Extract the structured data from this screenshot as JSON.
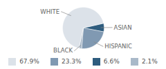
{
  "chart_data": {
    "type": "pie",
    "categories": [
      "WHITE",
      "HISPANIC",
      "ASIAN",
      "BLACK"
    ],
    "values": [
      67.9,
      23.3,
      6.6,
      2.1
    ],
    "value_labels": [
      "67.9%",
      "23.3%",
      "6.6%",
      "2.1%"
    ],
    "colors": [
      "#dce2e9",
      "#8099b2",
      "#2e5c7e",
      "#a9b9c9"
    ],
    "legend": "bottom"
  }
}
